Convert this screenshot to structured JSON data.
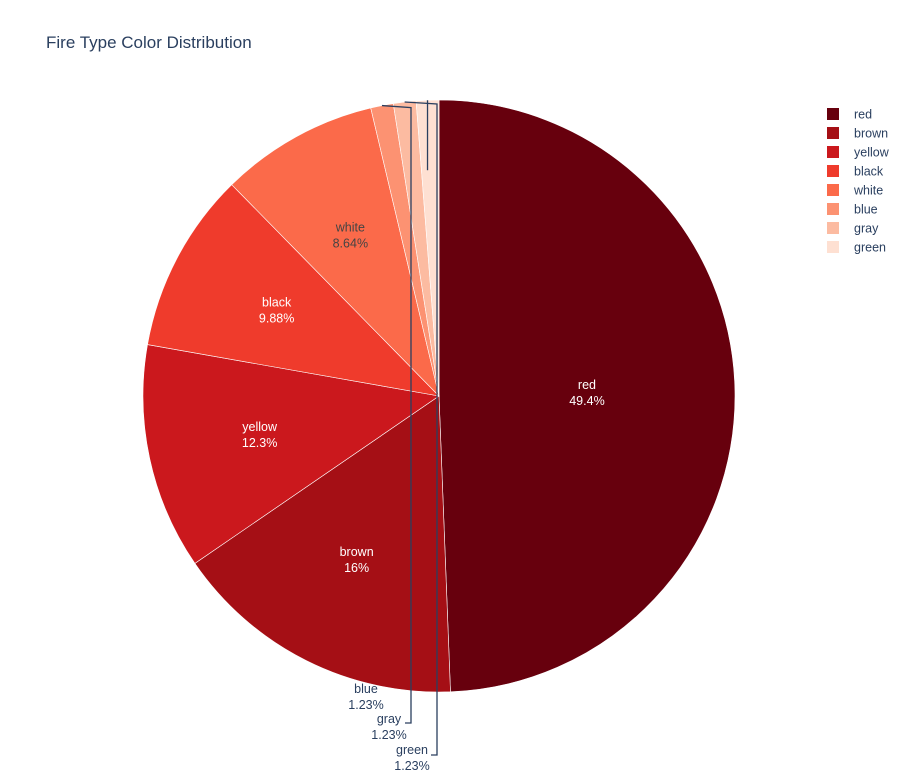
{
  "chart_data": {
    "type": "pie",
    "title": "Fire Type Color Distribution",
    "categories": [
      "red",
      "brown",
      "yellow",
      "black",
      "white",
      "blue",
      "gray",
      "green"
    ],
    "values": [
      40,
      13,
      10,
      8,
      7,
      1,
      1,
      1
    ],
    "percent_labels": [
      "49.4%",
      "16%",
      "12.3%",
      "9.88%",
      "8.64%",
      "1.23%",
      "1.23%",
      "1.23%"
    ],
    "colors": [
      "#67000d",
      "#a50f15",
      "#cb181d",
      "#ef3b2c",
      "#fb6a4a",
      "#fc9272",
      "#fcbba1",
      "#fee0d2"
    ],
    "legend": {
      "placement": "top-right",
      "items": [
        "red",
        "brown",
        "yellow",
        "black",
        "white",
        "blue",
        "gray",
        "green"
      ]
    },
    "direction": "clockwise",
    "sort": "descending"
  }
}
